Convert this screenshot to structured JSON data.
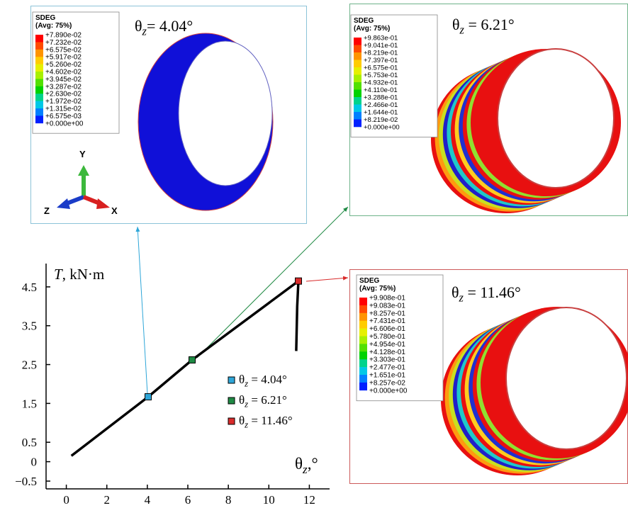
{
  "chart_data": {
    "type": "line",
    "x_label": "θz,°",
    "y_label": "T, kN·m",
    "xlim": [
      -1,
      13
    ],
    "ylim": [
      -0.7,
      5.1
    ],
    "xticks": [
      0,
      2,
      4,
      6,
      8,
      10,
      12
    ],
    "yticks": [
      {
        "value": -0.5,
        "label": "−0.5"
      },
      0,
      0.5,
      1.5,
      2.5,
      3.5,
      4.5
    ],
    "line": {
      "color": "#000000",
      "x": [
        0.25,
        4.04,
        6.21,
        11.46,
        11.4,
        11.35
      ],
      "y": [
        0.15,
        1.67,
        2.62,
        4.65,
        4.0,
        2.85
      ]
    },
    "points": [
      {
        "name": "θz = 4.04°",
        "color": "#2ea6d8",
        "x": 4.04,
        "y": 1.67
      },
      {
        "name": "θz = 6.21°",
        "color": "#1f8a44",
        "x": 6.21,
        "y": 2.62
      },
      {
        "name": "θz = 11.46°",
        "color": "#d92b2b",
        "x": 11.46,
        "y": 4.65
      }
    ]
  },
  "insets": [
    {
      "title": "θz= 4.04°",
      "legend_title": "SDEG",
      "legend_subtitle": "(Avg: 75%)",
      "legend_values": [
        "+7.890e-02",
        "+7.232e-02",
        "+6.575e-02",
        "+5.917e-02",
        "+5.260e-02",
        "+4.602e-02",
        "+3.945e-02",
        "+3.287e-02",
        "+2.630e-02",
        "+1.972e-02",
        "+1.315e-02",
        "+6.575e-03",
        "+0.000e+00"
      ],
      "axes": [
        "Y",
        "Z",
        "X"
      ]
    },
    {
      "title": "θz = 6.21°",
      "legend_title": "SDEG",
      "legend_subtitle": "(Avg: 75%)",
      "legend_values": [
        "+9.863e-01",
        "+9.041e-01",
        "+8.219e-01",
        "+7.397e-01",
        "+6.575e-01",
        "+5.753e-01",
        "+4.932e-01",
        "+4.110e-01",
        "+3.288e-01",
        "+2.466e-01",
        "+1.644e-01",
        "+8.219e-02",
        "+0.000e+00"
      ]
    },
    {
      "title": "θz = 11.46°",
      "legend_title": "SDEG",
      "legend_subtitle": "(Avg: 75%)",
      "legend_values": [
        "+9.908e-01",
        "+9.083e-01",
        "+8.257e-01",
        "+7.431e-01",
        "+6.606e-01",
        "+5.780e-01",
        "+4.954e-01",
        "+4.128e-01",
        "+3.303e-01",
        "+2.477e-01",
        "+1.651e-01",
        "+8.257e-02",
        "+0.000e+00"
      ]
    }
  ]
}
